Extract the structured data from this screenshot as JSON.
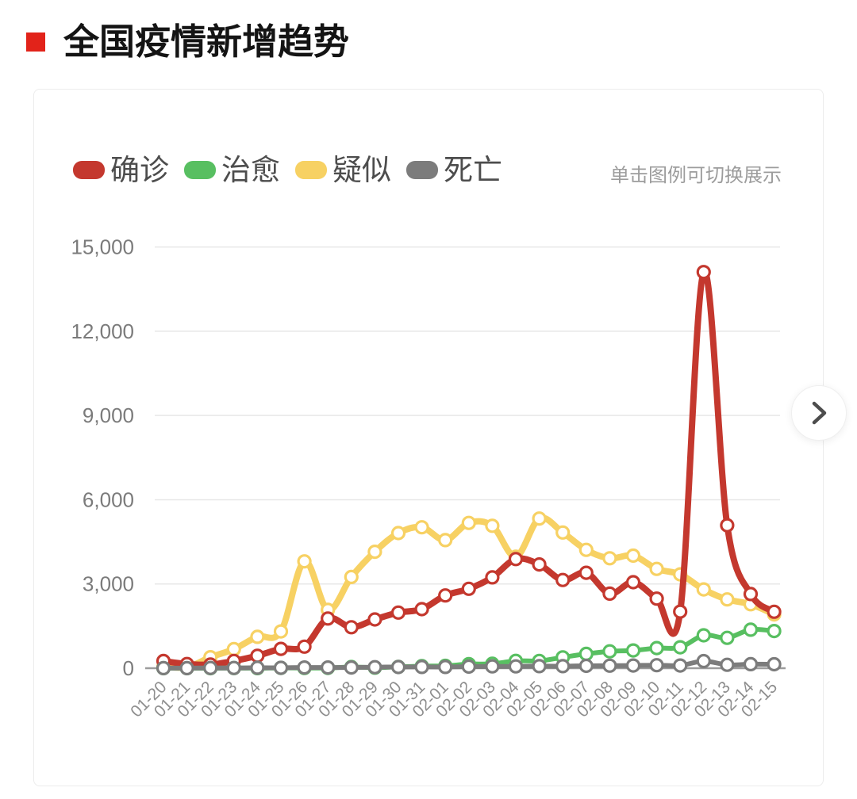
{
  "page": {
    "title": "全国疫情新增趋势"
  },
  "legend": {
    "hint": "单击图例可切换展示"
  },
  "chart_data": {
    "type": "line",
    "title": "全国疫情新增趋势",
    "categories": [
      "01-20",
      "01-21",
      "01-22",
      "01-23",
      "01-24",
      "01-25",
      "01-26",
      "01-27",
      "01-28",
      "01-29",
      "01-30",
      "01-31",
      "02-01",
      "02-02",
      "02-03",
      "02-04",
      "02-05",
      "02-06",
      "02-07",
      "02-08",
      "02-09",
      "02-10",
      "02-11",
      "02-12",
      "02-13",
      "02-14",
      "02-15"
    ],
    "series": [
      {
        "key": "confirmed",
        "name": "确诊",
        "color": "#c4382e",
        "values": [
          258,
          149,
          131,
          259,
          444,
          688,
          769,
          1771,
          1459,
          1737,
          1982,
          2102,
          2590,
          2829,
          3235,
          3887,
          3694,
          3143,
          3399,
          2656,
          3062,
          2478,
          2015,
          14108,
          5090,
          2641,
          2009
        ]
      },
      {
        "key": "cured",
        "name": "治愈",
        "color": "#58bf61",
        "values": [
          0,
          0,
          0,
          6,
          3,
          11,
          9,
          11,
          43,
          21,
          47,
          72,
          85,
          147,
          157,
          262,
          261,
          387,
          510,
          600,
          632,
          716,
          744,
          1171,
          1081,
          1373,
          1323
        ]
      },
      {
        "key": "suspected",
        "name": "疑似",
        "color": "#f7d163",
        "values": [
          54,
          37,
          393,
          680,
          1118,
          1309,
          3806,
          2077,
          3248,
          4148,
          4812,
          5019,
          4562,
          5173,
          5072,
          3971,
          5328,
          4833,
          4214,
          3916,
          4008,
          3536,
          3342,
          2807,
          2450,
          2277,
          1918
        ]
      },
      {
        "key": "death",
        "name": "死亡",
        "color": "#7c7c7c",
        "values": [
          2,
          3,
          8,
          8,
          16,
          15,
          24,
          26,
          26,
          38,
          43,
          46,
          45,
          57,
          64,
          65,
          73,
          73,
          86,
          89,
          97,
          108,
          97,
          254,
          121,
          143,
          142
        ]
      }
    ],
    "ylim": [
      0,
      15000
    ],
    "yticks": [
      0,
      3000,
      6000,
      9000,
      12000,
      15000
    ],
    "ytick_labels": [
      "0",
      "3,000",
      "6,000",
      "9,000",
      "12,000",
      "15,000"
    ],
    "grid": true,
    "legend_position": "top-left",
    "legend_note": "单击图例可切换展示",
    "colors": {
      "grid_line": "#e7e7e7",
      "axis_line": "#9c9c9c",
      "y_tick_text": "#7b7b7b",
      "x_tick_text": "#8e8e8e",
      "title_bullet": "#e2231a",
      "legend_text": "#4d4d4d",
      "hint_text": "#9c9c9c"
    }
  }
}
